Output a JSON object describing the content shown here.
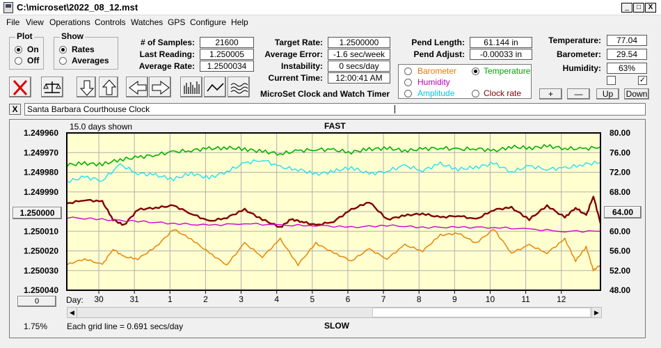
{
  "window": {
    "title": "C:\\microset\\2022_08_12.mst",
    "minimize": "_",
    "maximize": "□",
    "close": "X"
  },
  "menu": [
    "File",
    "View",
    "Operations",
    "Controls",
    "Watches",
    "GPS",
    "Configure",
    "Help"
  ],
  "plot_group": {
    "label": "Plot",
    "options": [
      {
        "label": "On",
        "selected": true
      },
      {
        "label": "Off",
        "selected": false
      }
    ]
  },
  "show_group": {
    "label": "Show",
    "options": [
      {
        "label": "Rates",
        "selected": true
      },
      {
        "label": "Averages",
        "selected": false
      }
    ]
  },
  "stats": {
    "samples_label": "# of Samples:",
    "samples_value": "21600",
    "last_reading_label": "Last Reading:",
    "last_reading_value": "1.250005",
    "average_rate_label": "Average Rate:",
    "average_rate_value": "1.2500034"
  },
  "targets": {
    "target_rate_label": "Target Rate:",
    "target_rate_value": "1.2500000",
    "average_error_label": "Average Error:",
    "average_error_value": "-1.6 sec/week",
    "instability_label": "Instability:",
    "instability_value": "0 secs/day",
    "current_time_label": "Current Time:",
    "current_time_value": "12:00:41 AM"
  },
  "pendulum": {
    "length_label": "Pend Length:",
    "length_value": "61.144 in",
    "adjust_label": "Pend Adjust:",
    "adjust_value": "-0.00033 in"
  },
  "sensors": {
    "options": [
      {
        "label": "Barometer",
        "selected": false,
        "color": "#e07b00"
      },
      {
        "label": "Temperature",
        "selected": true,
        "color": "#00a000"
      },
      {
        "label": "Humidity",
        "selected": false,
        "color": "#c000c0"
      },
      {
        "label": "Amplitude",
        "selected": false,
        "color": "#00c8e0"
      },
      {
        "label": "Clock rate",
        "selected": false,
        "color": "#800000"
      }
    ]
  },
  "environment": {
    "temperature_label": "Temperature:",
    "temperature_value": "77.04",
    "barometer_label": "Barometer:",
    "barometer_value": "29.54",
    "humidity_label": "Humidity:",
    "humidity_value": "63%",
    "check1": false,
    "check2": true,
    "check2_mark": "✓"
  },
  "scale_buttons": [
    "+",
    "—",
    "Up",
    "Down"
  ],
  "app_caption": "MicroSet Clock and Watch Timer",
  "clock_name_close": "X",
  "clock_name": "Santa Barbara Courthouse Clock",
  "toolbar_icons": [
    "cancel-icon",
    "scale-icon",
    "arrow-down-icon",
    "arrow-up-icon",
    "arrow-left-icon",
    "arrow-right-icon",
    "bar-graph-icon",
    "line-graph-icon",
    "wave-graph-icon"
  ],
  "chart_data": {
    "type": "line",
    "title_top": "FAST",
    "title_bottom": "SLOW",
    "days_shown": "15.0 days shown",
    "grid_note": "Each grid line = 0.691 secs/day",
    "left_ticks": [
      "1.249960",
      "1.249970",
      "1.249980",
      "1.249990",
      "1.250000",
      "1.250010",
      "1.250020",
      "1.250030",
      "1.250040"
    ],
    "right_ticks": [
      "80.00",
      "76.00",
      "72.00",
      "68.00",
      "64.00",
      "60.00",
      "56.00",
      "52.00",
      "48.00"
    ],
    "left_center_button": "1.250000",
    "right_center_button": "64.00",
    "bottom_left_button": "0",
    "percent_label": "1.75%",
    "xlabel": "Day:",
    "x_ticks": [
      "30",
      "31",
      "1",
      "2",
      "3",
      "4",
      "5",
      "6",
      "7",
      "8",
      "9",
      "10",
      "11",
      "12"
    ],
    "ylim_left": [
      1.24996,
      1.25004
    ],
    "ylim_right": [
      48,
      80
    ],
    "x_range": [
      0,
      15
    ],
    "series": [
      {
        "name": "Temperature",
        "color": "#00b000",
        "width": 1.6,
        "axis": "right",
        "x": [
          0,
          0.5,
          1,
          1.5,
          2,
          2.5,
          3,
          3.5,
          4,
          4.5,
          5,
          5.5,
          6,
          6.5,
          7,
          7.5,
          8,
          8.5,
          9,
          9.5,
          10,
          10.5,
          11,
          11.5,
          12,
          12.5,
          13,
          13.5,
          14,
          14.5,
          15
        ],
        "y": [
          73.5,
          73.8,
          73.6,
          74.6,
          75.0,
          75.6,
          76.1,
          76.5,
          76.8,
          77.0,
          76.7,
          76.2,
          75.8,
          76.3,
          76.7,
          76.5,
          76.1,
          76.7,
          76.9,
          76.4,
          76.7,
          77.0,
          76.6,
          76.9,
          76.3,
          77.2,
          76.9,
          77.3,
          76.9,
          76.7,
          77.2
        ]
      },
      {
        "name": "Amplitude",
        "color": "#20e0f0",
        "width": 1.4,
        "axis": "right",
        "x": [
          0,
          0.5,
          1,
          1.5,
          2,
          2.5,
          3,
          3.5,
          4,
          4.5,
          5,
          5.5,
          6,
          6.5,
          7,
          7.5,
          8,
          8.5,
          9,
          9.5,
          10,
          10.5,
          11,
          11.5,
          12,
          12.5,
          13,
          13.5,
          14,
          14.5,
          15
        ],
        "y": [
          70.1,
          71.0,
          70.4,
          73.5,
          71.8,
          71.4,
          70.6,
          71.8,
          70.8,
          72.2,
          73.8,
          74.6,
          73.0,
          72.6,
          71.6,
          72.2,
          73.0,
          71.6,
          72.3,
          73.3,
          72.4,
          73.7,
          72.6,
          73.0,
          73.8,
          72.1,
          73.2,
          72.7,
          72.8,
          73.6,
          74.0
        ]
      },
      {
        "name": "Clock rate",
        "color": "#800000",
        "width": 2.4,
        "axis": "left",
        "x": [
          0,
          0.5,
          1,
          1.3,
          1.6,
          2,
          2.5,
          3,
          3.5,
          4,
          4.5,
          5,
          5.5,
          6,
          6.3,
          6.6,
          7,
          7.5,
          8,
          8.5,
          9,
          9.5,
          10,
          10.5,
          11,
          11.5,
          12,
          12.5,
          13,
          13.5,
          14,
          14.3,
          14.6,
          14.8,
          15
        ],
        "y": [
          1.249996,
          1.249994,
          1.249995,
          1.250004,
          1.250007,
          1.249999,
          1.249998,
          1.249997,
          1.250001,
          1.250005,
          1.250003,
          1.249999,
          1.250004,
          1.250008,
          1.250004,
          1.250005,
          1.250007,
          1.250005,
          1.249999,
          1.249995,
          1.250004,
          1.250002,
          1.250001,
          1.250003,
          1.250002,
          1.250004,
          1.249999,
          1.249998,
          1.250004,
          1.249997,
          1.250003,
          1.249998,
          1.250002,
          1.249992,
          1.250006
        ]
      },
      {
        "name": "Humidity",
        "color": "#d000d0",
        "width": 1.4,
        "axis": "left",
        "x": [
          0,
          1,
          2,
          3,
          4,
          5,
          6,
          7,
          8,
          9,
          10,
          11,
          12,
          13,
          14,
          15
        ],
        "y": [
          1.250003,
          1.250004,
          1.250005,
          1.250006,
          1.250007,
          1.250006,
          1.250007,
          1.250007,
          1.250008,
          1.250007,
          1.250008,
          1.250008,
          1.250008,
          1.250009,
          1.25001,
          1.25001
        ]
      },
      {
        "name": "Barometer",
        "color": "#e88a10",
        "width": 1.6,
        "axis": "left",
        "x": [
          0,
          0.5,
          1,
          1.3,
          1.6,
          2,
          2.5,
          3,
          3.5,
          4,
          4.5,
          5,
          5.5,
          6,
          6.5,
          7,
          7.5,
          8,
          8.5,
          9,
          9.5,
          10,
          10.5,
          11,
          11.5,
          12,
          12.5,
          13,
          13.5,
          14,
          14.3,
          14.6,
          14.8,
          15
        ],
        "y": [
          1.250027,
          1.250024,
          1.250027,
          1.250019,
          1.250023,
          1.250024,
          1.250018,
          1.250009,
          1.250014,
          1.250021,
          1.250027,
          1.250016,
          1.250023,
          1.250014,
          1.250027,
          1.250016,
          1.250021,
          1.250025,
          1.250019,
          1.250024,
          1.250017,
          1.25002,
          1.250012,
          1.250011,
          1.250016,
          1.250009,
          1.250021,
          1.250017,
          1.250021,
          1.250014,
          1.250025,
          1.250018,
          1.25003,
          1.250027
        ]
      }
    ]
  }
}
